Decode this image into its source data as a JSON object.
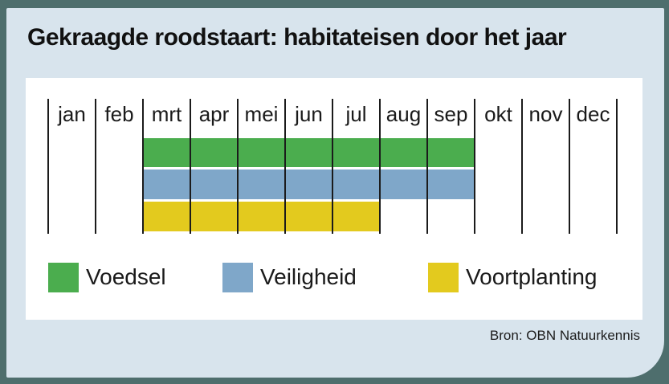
{
  "title": "Gekraagde roodstaart: habitateisen door het jaar",
  "source": "Bron: OBN Natuurkennis",
  "colors": {
    "frame_background": "#4E6E6D",
    "card_background": "#D8E4ED",
    "panel_background": "#FFFFFF",
    "tick_line": "#1B1B1B",
    "text": "#1A1A1A",
    "voedsel_green": "#4BAD4E",
    "veiligheid_blue": "#7FA7C9",
    "voortplanting_yellow": "#E3CA1E"
  },
  "chart_data": {
    "type": "bar",
    "orientation": "horizontal-range-timeline",
    "title": "Gekraagde roodstaart: habitateisen door het jaar",
    "categories": [
      "jan",
      "feb",
      "mrt",
      "apr",
      "mei",
      "jun",
      "jul",
      "aug",
      "sep",
      "okt",
      "nov",
      "dec"
    ],
    "series": [
      {
        "name": "Voedsel",
        "color": "#4BAD4E",
        "start_month": "mrt",
        "end_month": "sep",
        "start_index": 2,
        "end_index": 8,
        "active_months": [
          "mrt",
          "apr",
          "mei",
          "jun",
          "jul",
          "aug",
          "sep"
        ]
      },
      {
        "name": "Veiligheid",
        "color": "#7FA7C9",
        "start_month": "mrt",
        "end_month": "sep",
        "start_index": 2,
        "end_index": 8,
        "active_months": [
          "mrt",
          "apr",
          "mei",
          "jun",
          "jul",
          "aug",
          "sep"
        ]
      },
      {
        "name": "Voortplanting",
        "color": "#E3CA1E",
        "start_month": "mrt",
        "end_month": "jul",
        "start_index": 2,
        "end_index": 6,
        "active_months": [
          "mrt",
          "apr",
          "mei",
          "jun",
          "jul"
        ]
      }
    ],
    "legend_position": "bottom",
    "grid": "vertical-month-ticks",
    "source": "Bron: OBN Natuurkennis"
  }
}
